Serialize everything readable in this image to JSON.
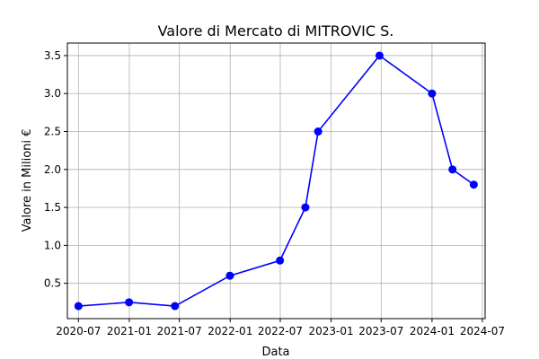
{
  "chart_data": {
    "type": "line",
    "title": "Valore di Mercato di MITROVIC S.",
    "xlabel": "Data",
    "ylabel": "Valore in Milioni €",
    "x": [
      "2020-07-01",
      "2020-12-31",
      "2021-06-15",
      "2021-12-31",
      "2022-06-30",
      "2022-09-30",
      "2022-11-15",
      "2023-06-25",
      "2024-01-01",
      "2024-03-15",
      "2024-05-31"
    ],
    "series": [
      {
        "values": [
          0.2,
          0.25,
          0.2,
          0.6,
          0.8,
          1.5,
          2.5,
          3.5,
          3.0,
          2.0,
          1.8
        ],
        "color": "#0000ff"
      }
    ],
    "xticks": [
      "2020-07",
      "2021-01",
      "2021-07",
      "2022-01",
      "2022-07",
      "2023-01",
      "2023-07",
      "2024-01",
      "2024-07"
    ],
    "yticks": [
      "0.5",
      "1.0",
      "1.5",
      "2.0",
      "2.5",
      "3.0",
      "3.5"
    ],
    "xlim": [
      "2020-05-22",
      "2024-07-11"
    ],
    "ylim": [
      0.035,
      3.665
    ],
    "grid": true,
    "legend": false
  }
}
